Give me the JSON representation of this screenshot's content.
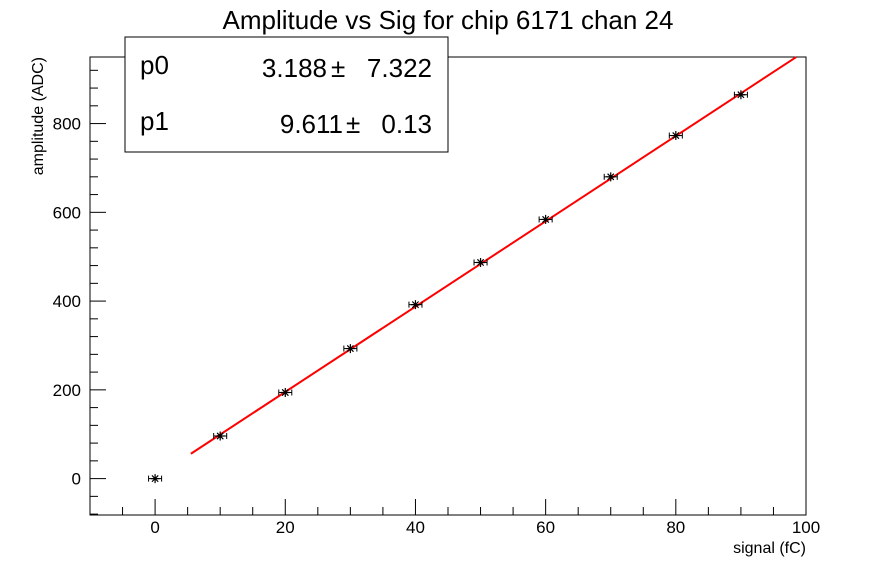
{
  "chart_data": {
    "type": "scatter",
    "title": "Amplitude vs Sig for chip 6171 chan 24",
    "xlabel": "signal (fC)",
    "ylabel": "amplitude (ADC)",
    "xlim": [
      -10,
      100
    ],
    "ylim": [
      -82,
      950
    ],
    "x_ticks": [
      0,
      20,
      40,
      60,
      80,
      100
    ],
    "x_tick_labels": [
      "0",
      "20",
      "40",
      "60",
      "80",
      "100"
    ],
    "y_ticks": [
      0,
      200,
      400,
      600,
      800
    ],
    "y_tick_labels": [
      "0",
      "200",
      "400",
      "600",
      "800"
    ],
    "grid": false,
    "series": [
      {
        "x": [
          0,
          10,
          20,
          30,
          40,
          50,
          60,
          70,
          80,
          90
        ],
        "y": [
          0,
          96,
          194,
          293,
          392,
          487,
          584,
          680,
          773,
          865
        ],
        "x_err": 1,
        "y_err": 4,
        "marker": "star",
        "color": "#000000"
      }
    ],
    "fit": {
      "function": "linear",
      "x_range": [
        5.5,
        98.5
      ],
      "color": "#ff0000",
      "params": [
        {
          "name": "p0",
          "value": "3.188",
          "pm": "±",
          "error": "7.322"
        },
        {
          "name": "p1",
          "value": "9.611",
          "pm": "±",
          "error": " 0.13"
        }
      ],
      "intercept": 3.188,
      "slope": 9.611
    }
  }
}
